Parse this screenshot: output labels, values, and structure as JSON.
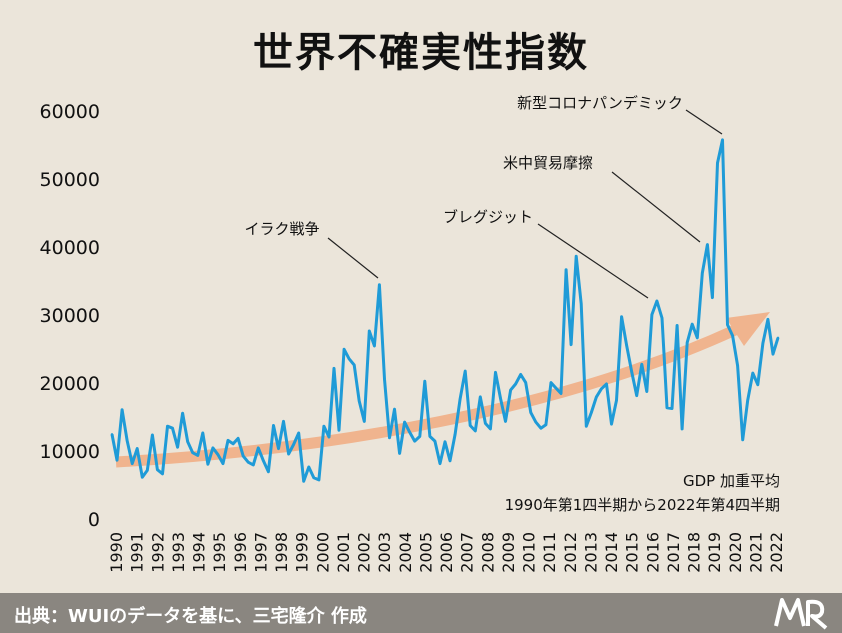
{
  "title": "世界不確実性指数",
  "footer": {
    "source": "出典：WUIのデータを基に、三宅隆介 作成"
  },
  "chart_data": {
    "type": "line",
    "title": "世界不確実性指数",
    "ylim": [
      0,
      60000
    ],
    "yticks": [
      "0",
      "10000",
      "20000",
      "30000",
      "40000",
      "50000",
      "60000"
    ],
    "xticks": [
      "1990",
      "1991",
      "1992",
      "1993",
      "1994",
      "1995",
      "1996",
      "1997",
      "1998",
      "1999",
      "2000",
      "2001",
      "2002",
      "2003",
      "2004",
      "2005",
      "2006",
      "2007",
      "2008",
      "2009",
      "2010",
      "2011",
      "2012",
      "2013",
      "2014",
      "2015",
      "2016",
      "2017",
      "2018",
      "2019",
      "2020",
      "2021",
      "2022"
    ],
    "series_name": "GDP 加重平均",
    "series_note": "1990年第1四半期から2022年第4四半期",
    "series_color": "#1f9bd7",
    "trend_color": "#f0b48e",
    "values": [
      12600,
      8800,
      16200,
      11700,
      8300,
      10500,
      6300,
      7300,
      12500,
      7400,
      6800,
      13800,
      13500,
      10700,
      15700,
      11500,
      9900,
      9500,
      12800,
      8200,
      10600,
      9600,
      8300,
      11700,
      11200,
      12000,
      9400,
      8500,
      8100,
      10600,
      8700,
      7100,
      13900,
      10500,
      14500,
      9700,
      11100,
      12800,
      5700,
      7800,
      6200,
      5900,
      13800,
      12200,
      22300,
      13200,
      25100,
      23700,
      22800,
      17500,
      14500,
      27800,
      25600,
      34600,
      20700,
      12100,
      16300,
      9800,
      14400,
      12900,
      11600,
      12300,
      20400,
      12300,
      11600,
      8300,
      11500,
      8700,
      12600,
      17800,
      21900,
      13900,
      13100,
      18100,
      14200,
      13400,
      21700,
      17900,
      14500,
      19100,
      20000,
      21400,
      20200,
      15800,
      14400,
      13500,
      14000,
      20200,
      19400,
      18600,
      36800,
      25800,
      38800,
      31800,
      13800,
      15800,
      18100,
      19300,
      20000,
      14100,
      17600,
      29900,
      25700,
      21800,
      18300,
      22900,
      18900,
      30200,
      32200,
      29700,
      16500,
      16400,
      28600,
      13400,
      26100,
      28800,
      26800,
      36300,
      40500,
      32700,
      52500,
      55900,
      28700,
      27100,
      22700,
      11800,
      17600,
      21600,
      19900,
      26000,
      29500,
      24400,
      26800
    ],
    "annotations": [
      "イラク戦争",
      "ブレグジット",
      "米中貿易摩擦",
      "新型コロナパンデミック"
    ]
  }
}
